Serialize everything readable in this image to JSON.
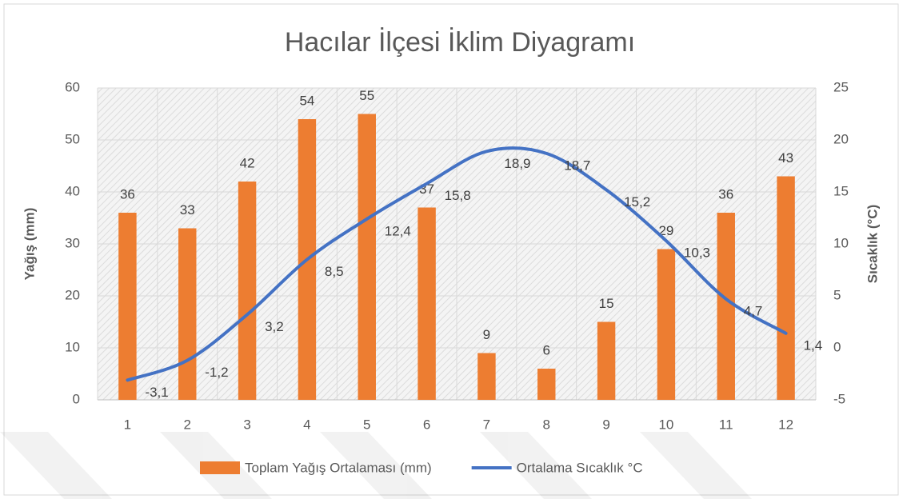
{
  "chart_data": {
    "type": "bar",
    "title": "Hacılar İlçesi İklim Diyagramı",
    "y_label": "Yağış (mm)",
    "y2_label": "Sıcaklık (°C)",
    "categories": [
      "1",
      "2",
      "3",
      "4",
      "5",
      "6",
      "7",
      "8",
      "9",
      "10",
      "11",
      "12"
    ],
    "series": [
      {
        "name": "Toplam Yağış Ortalaması (mm)",
        "color": "#ed7d31",
        "type": "bar",
        "values": [
          36,
          33,
          42,
          54,
          55,
          37,
          9,
          6,
          15,
          29,
          36,
          43
        ]
      },
      {
        "name": "Ortalama Sıcaklık °C",
        "color": "#4472c4",
        "type": "line",
        "axis": "y2",
        "values": [
          -3.1,
          -1.2,
          3.2,
          8.5,
          12.4,
          15.8,
          18.9,
          18.7,
          15.2,
          10.3,
          4.7,
          1.4
        ],
        "value_labels": [
          "-3,1",
          "-1,2",
          "3,2",
          "8,5",
          "12,4",
          "15,8",
          "18,9",
          "18,7",
          "15,2",
          "10,3",
          "4,7",
          "1,4"
        ]
      }
    ],
    "ylim": [
      0,
      60
    ],
    "yticks": [
      0,
      10,
      20,
      30,
      40,
      50,
      60
    ],
    "y2lim": [
      -5,
      25
    ],
    "y2ticks": [
      -5,
      0,
      5,
      10,
      15,
      20,
      25
    ],
    "grid": true,
    "legend": "bottom"
  }
}
